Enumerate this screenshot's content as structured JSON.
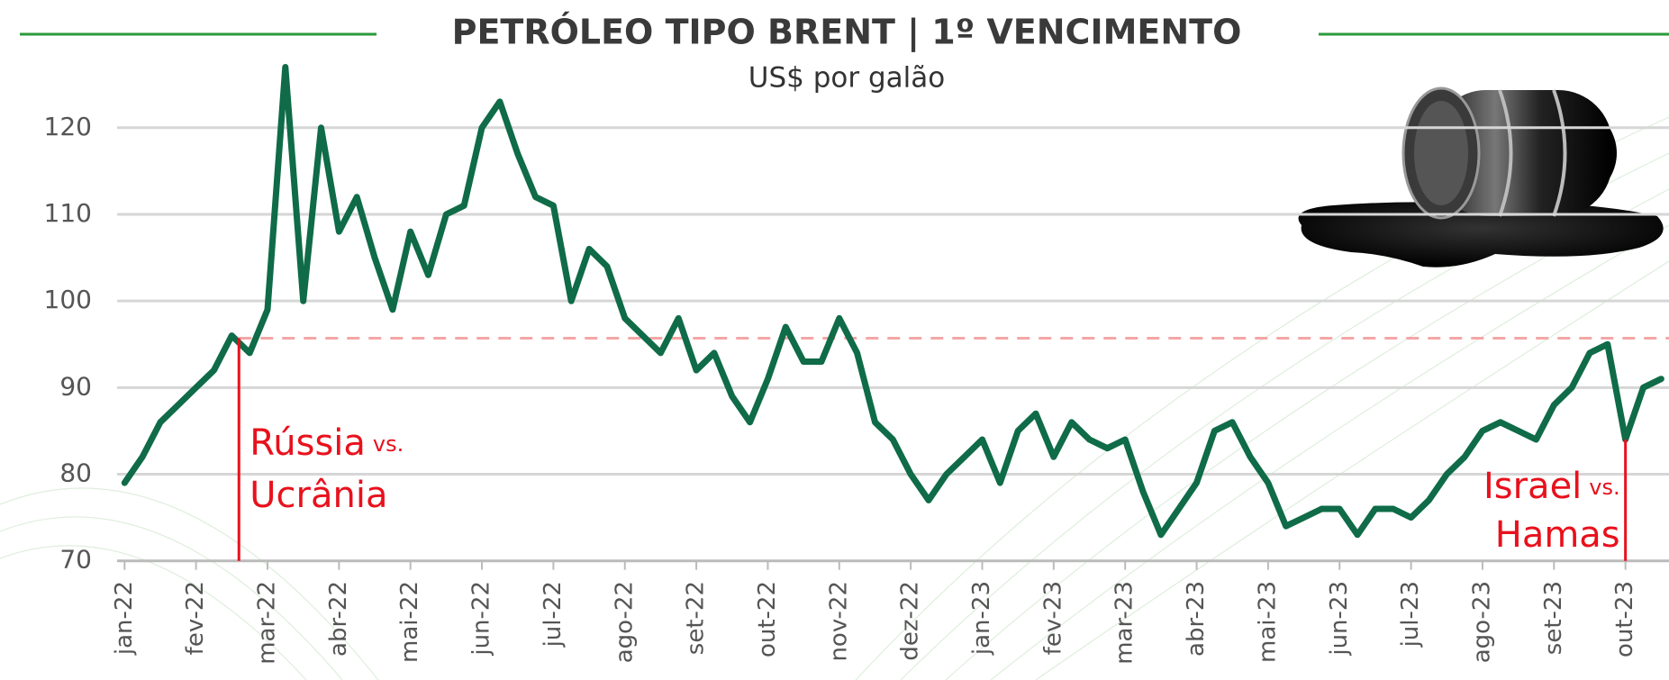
{
  "chart_data": {
    "type": "line",
    "title": "PETRÓLEO TIPO BRENT | 1º VENCIMENTO",
    "subtitle": "US$ por galão",
    "categories": [
      "jan-22",
      null,
      null,
      null,
      "fev-22",
      null,
      null,
      null,
      "mar-22",
      null,
      null,
      null,
      "abr-22",
      null,
      null,
      null,
      "mai-22",
      null,
      null,
      null,
      "jun-22",
      null,
      null,
      null,
      "jul-22",
      null,
      null,
      null,
      "ago-22",
      null,
      null,
      null,
      "set-22",
      null,
      null,
      null,
      "out-22",
      null,
      null,
      null,
      "nov-22",
      null,
      null,
      null,
      "dez-22",
      null,
      null,
      null,
      "jan-23",
      null,
      null,
      null,
      "fev-23",
      null,
      null,
      null,
      "mar-23",
      null,
      null,
      null,
      "abr-23",
      null,
      null,
      null,
      "mai-23",
      null,
      null,
      null,
      "jun-23",
      null,
      null,
      null,
      "jul-23",
      null,
      null,
      null,
      "ago-23",
      null,
      null,
      null,
      "set-23",
      null,
      null,
      null,
      "out-23",
      null,
      null
    ],
    "series": [
      {
        "color": "#0f6b48",
        "values": [
          79,
          82,
          86,
          88,
          90,
          92,
          96,
          94,
          99,
          127,
          100,
          120,
          108,
          112,
          105,
          99,
          108,
          103,
          110,
          111,
          120,
          123,
          117,
          112,
          111,
          100,
          106,
          104,
          98,
          96,
          94,
          98,
          92,
          94,
          89,
          86,
          91,
          97,
          93,
          93,
          98,
          94,
          86,
          84,
          80,
          77,
          80,
          82,
          84,
          79,
          85,
          87,
          82,
          86,
          84,
          83,
          84,
          78,
          73,
          76,
          79,
          85,
          86,
          82,
          79,
          74,
          75,
          76,
          76,
          73,
          76,
          76,
          75,
          77,
          80,
          82,
          85,
          86,
          85,
          84,
          88,
          90,
          94,
          95,
          84,
          90,
          91
        ]
      }
    ],
    "ylim": [
      70,
      130
    ],
    "yticks": [
      70,
      80,
      90,
      100,
      110,
      120
    ],
    "grid": true,
    "reference_line": {
      "value": 95.7,
      "color": "#f4a6a6"
    },
    "annotations": [
      {
        "label": "Rússia",
        "connector": "vs.",
        "label2": "Ucrânia"
      },
      {
        "label": "Israel",
        "connector": "vs.",
        "label2": "Hamas"
      }
    ]
  }
}
